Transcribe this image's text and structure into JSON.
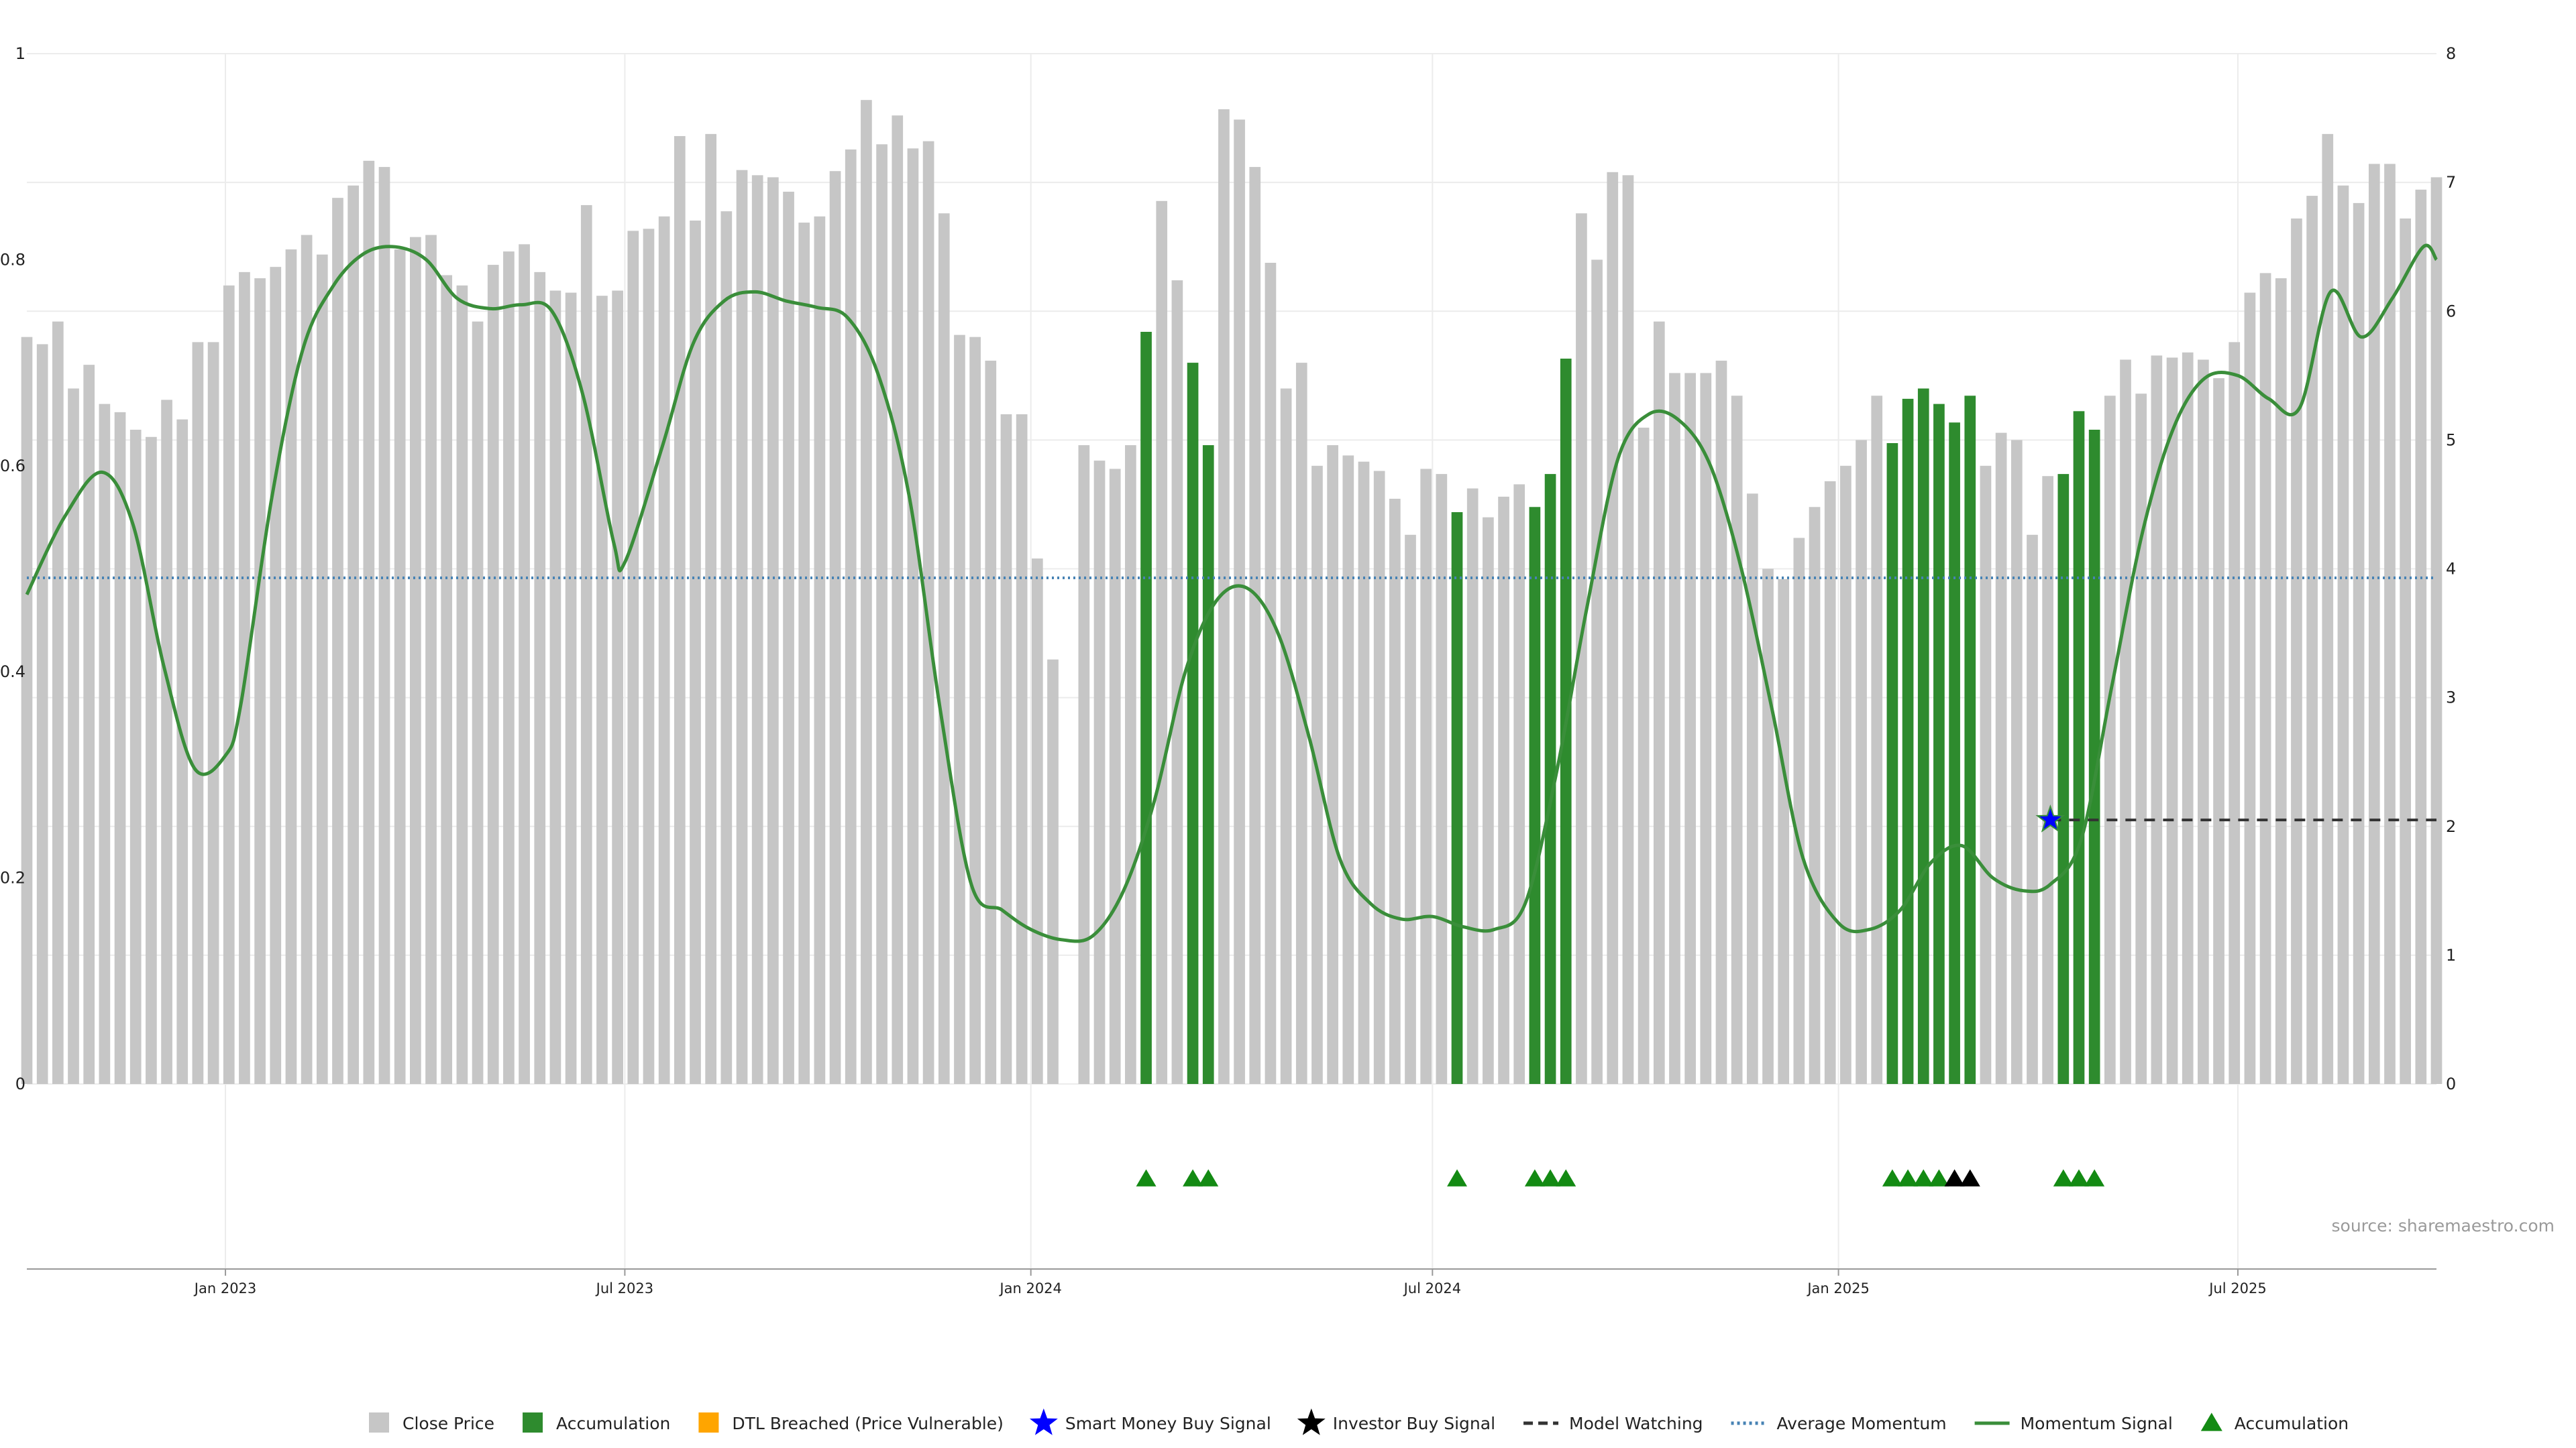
{
  "chart_data": {
    "type": "bar",
    "source_text": "source: sharemaestro.com",
    "colors": {
      "close_price": "#c6c6c6",
      "accumulation": "#2e8b2e",
      "dtl_breached": "#ffa500",
      "smart_money": "#0000ff",
      "investor": "#000000",
      "model_watching": "#333333",
      "average_momentum": "#4682b4",
      "momentum_signal": "#3a8e3a",
      "accumulation_marker": "#138a13"
    },
    "x_axis": {
      "start": "2022-10-03",
      "end": "2025-09-29",
      "tick_labels": [
        "Jan 2023",
        "Jul 2023",
        "Jan 2024",
        "Jul 2024",
        "Jan 2025",
        "Jul 2025"
      ],
      "tick_dates": [
        "2023-01-01",
        "2023-07-01",
        "2024-01-01",
        "2024-07-01",
        "2025-01-01",
        "2025-07-01"
      ]
    },
    "y_left": {
      "ylim": [
        0,
        1
      ],
      "ticks": [
        0,
        0.2,
        0.4,
        0.6,
        0.8,
        1
      ],
      "tick_labels": [
        "0",
        "0.2",
        "0.4",
        "0.6",
        "0.8",
        "1"
      ]
    },
    "y_right": {
      "ylim": [
        0,
        8
      ],
      "ticks": [
        0,
        1,
        2,
        3,
        4,
        5,
        6,
        7,
        8
      ],
      "tick_labels": [
        "0",
        "1",
        "2",
        "3",
        "4",
        "5",
        "6",
        "7",
        "8"
      ]
    },
    "close_price_weekly": [
      0.725,
      0.718,
      0.74,
      0.675,
      0.698,
      0.66,
      0.652,
      0.635,
      0.628,
      0.664,
      0.645,
      0.72,
      0.72,
      0.775,
      0.788,
      0.782,
      0.793,
      0.81,
      0.824,
      0.805,
      0.86,
      0.872,
      0.896,
      0.89,
      0.81,
      0.822,
      0.824,
      0.785,
      0.775,
      0.74,
      0.795,
      0.808,
      0.815,
      0.788,
      0.77,
      0.768,
      0.853,
      0.765,
      0.77,
      0.828,
      0.83,
      0.842,
      0.92,
      0.838,
      0.922,
      0.847,
      0.887,
      0.882,
      0.88,
      0.866,
      0.836,
      0.842,
      0.886,
      0.907,
      0.955,
      0.912,
      0.94,
      0.908,
      0.915,
      0.845,
      0.727,
      0.725,
      0.702,
      0.65,
      0.65,
      0.51,
      0.412,
      null,
      0.62,
      0.605,
      0.597,
      0.62,
      0.73,
      0.857,
      0.78,
      0.7,
      0.62,
      0.946,
      0.936,
      0.89,
      0.797,
      0.675,
      0.7,
      0.6,
      0.62,
      0.61,
      0.604,
      0.595,
      0.568,
      0.533,
      0.597,
      0.592,
      0.555,
      0.578,
      0.55,
      0.57,
      0.582,
      0.56,
      0.592,
      0.704,
      0.845,
      0.8,
      0.885,
      0.882,
      0.637,
      0.74,
      0.69,
      0.69,
      0.69,
      0.702,
      0.668,
      0.573,
      0.5,
      0.49,
      0.53,
      0.56,
      0.585,
      0.6,
      0.625,
      0.668,
      0.622,
      0.665,
      0.675,
      0.66,
      0.642,
      0.668,
      0.6,
      0.632,
      0.625,
      0.533,
      0.59,
      0.592,
      0.653,
      0.635,
      0.668,
      0.703,
      0.67,
      0.707,
      0.705,
      0.71,
      0.703,
      0.685,
      0.72,
      0.768,
      0.787,
      0.782,
      0.84,
      0.862,
      0.922,
      0.872,
      0.855,
      0.893,
      0.893,
      0.84,
      0.868,
      0.88
    ],
    "accumulation_weeks": [
      72,
      75,
      76,
      92,
      97,
      98,
      99,
      120,
      121,
      122,
      123,
      124,
      125,
      131,
      132,
      133
    ],
    "accumulation_markers_weeks": [
      72,
      75,
      76,
      92,
      97,
      98,
      99,
      120,
      121,
      122,
      123,
      131,
      132,
      133
    ],
    "investor_buy_markers_weeks": [
      124,
      125
    ],
    "smart_money_signal": {
      "date": "2025-04-07",
      "value": 2.05
    },
    "model_watching": {
      "value": 2.05,
      "from": "2025-04-07",
      "to": "2025-09-29"
    },
    "average_momentum": 3.93,
    "momentum_signal": {
      "dates": [
        "2022-10-03",
        "2022-10-20",
        "2022-11-06",
        "2022-11-20",
        "2022-12-04",
        "2022-12-18",
        "2023-01-01",
        "2023-01-08",
        "2023-01-22",
        "2023-02-05",
        "2023-02-19",
        "2023-03-05",
        "2023-03-19",
        "2023-04-02",
        "2023-04-16",
        "2023-05-01",
        "2023-05-15",
        "2023-05-29",
        "2023-06-12",
        "2023-06-26",
        "2023-07-01",
        "2023-07-18",
        "2023-08-01",
        "2023-08-15",
        "2023-08-29",
        "2023-09-12",
        "2023-09-26",
        "2023-10-10",
        "2023-10-24",
        "2023-11-07",
        "2023-11-21",
        "2023-12-05",
        "2023-12-19",
        "2024-01-01",
        "2024-01-15",
        "2024-01-29",
        "2024-02-12",
        "2024-02-26",
        "2024-03-11",
        "2024-03-25",
        "2024-04-08",
        "2024-04-22",
        "2024-05-06",
        "2024-05-20",
        "2024-06-03",
        "2024-06-17",
        "2024-07-01",
        "2024-07-15",
        "2024-07-29",
        "2024-08-12",
        "2024-08-26",
        "2024-09-09",
        "2024-09-23",
        "2024-10-07",
        "2024-10-21",
        "2024-11-04",
        "2024-11-18",
        "2024-12-02",
        "2024-12-16",
        "2025-01-01",
        "2025-01-15",
        "2025-01-29",
        "2025-02-12",
        "2025-02-26",
        "2025-03-12",
        "2025-03-26",
        "2025-04-07",
        "2025-04-21",
        "2025-05-05",
        "2025-05-19",
        "2025-06-02",
        "2025-06-16",
        "2025-07-01",
        "2025-07-15",
        "2025-07-29",
        "2025-08-12",
        "2025-08-26",
        "2025-09-09",
        "2025-09-23",
        "2025-09-29"
      ],
      "values": [
        3.8,
        4.4,
        4.75,
        4.35,
        3.25,
        2.45,
        2.55,
        2.95,
        4.55,
        5.7,
        6.2,
        6.45,
        6.5,
        6.4,
        6.1,
        6.02,
        6.05,
        6.0,
        5.35,
        4.2,
        4.05,
        4.95,
        5.75,
        6.08,
        6.15,
        6.08,
        6.03,
        5.95,
        5.5,
        4.55,
        2.9,
        1.55,
        1.35,
        1.2,
        1.12,
        1.15,
        1.5,
        2.2,
        3.2,
        3.75,
        3.85,
        3.5,
        2.7,
        1.75,
        1.4,
        1.28,
        1.3,
        1.22,
        1.2,
        1.4,
        2.4,
        3.7,
        4.85,
        5.2,
        5.15,
        4.8,
        4.0,
        2.9,
        1.75,
        1.25,
        1.2,
        1.35,
        1.72,
        1.85,
        1.6,
        1.5,
        1.55,
        1.9,
        3.1,
        4.3,
        5.1,
        5.48,
        5.5,
        5.32,
        5.25,
        6.15,
        5.8,
        6.1,
        6.5,
        6.4
      ]
    },
    "legend": [
      {
        "label": "Close Price",
        "kind": "square",
        "color_key": "close_price"
      },
      {
        "label": "Accumulation",
        "kind": "square",
        "color_key": "accumulation"
      },
      {
        "label": "DTL Breached (Price Vulnerable)",
        "kind": "square",
        "color_key": "dtl_breached"
      },
      {
        "label": "Smart Money Buy Signal",
        "kind": "star",
        "color_key": "smart_money"
      },
      {
        "label": "Investor Buy Signal",
        "kind": "star",
        "color_key": "investor"
      },
      {
        "label": "Model Watching",
        "kind": "dashed",
        "color_key": "model_watching"
      },
      {
        "label": "Average Momentum",
        "kind": "dotted",
        "color_key": "average_momentum"
      },
      {
        "label": "Momentum Signal",
        "kind": "line",
        "color_key": "momentum_signal"
      },
      {
        "label": "Accumulation",
        "kind": "triangle",
        "color_key": "accumulation_marker"
      }
    ]
  }
}
